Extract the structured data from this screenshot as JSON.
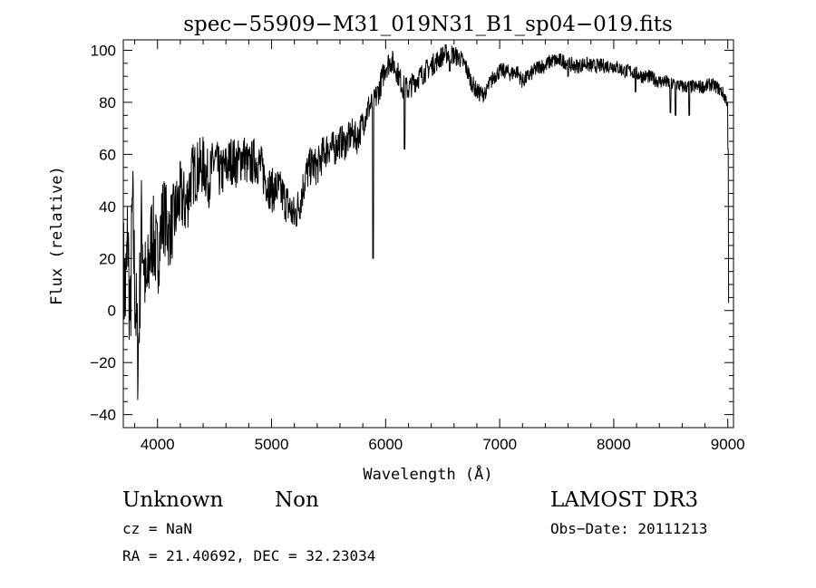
{
  "chart_data": {
    "type": "line",
    "title": "spec−55909−M31_019N31_B1_sp04−019.fits",
    "xlabel": "Wavelength (Å)",
    "ylabel": "Flux (relative)",
    "xlim": [
      3700,
      9050
    ],
    "ylim": [
      -45,
      104
    ],
    "xticks": [
      4000,
      5000,
      6000,
      7000,
      8000,
      9000
    ],
    "yticks": [
      -40,
      -20,
      0,
      20,
      40,
      60,
      80,
      100
    ],
    "ytick_labels": [
      "−40",
      "−20",
      "0",
      "20",
      "40",
      "60",
      "80",
      "100"
    ],
    "grid": false,
    "series": [
      {
        "name": "flux",
        "anchors": [
          [
            3700,
            15
          ],
          [
            3720,
            5
          ],
          [
            3740,
            30
          ],
          [
            3760,
            -8
          ],
          [
            3780,
            42
          ],
          [
            3800,
            10
          ],
          [
            3830,
            -20
          ],
          [
            3860,
            35
          ],
          [
            3900,
            5
          ],
          [
            3950,
            30
          ],
          [
            4000,
            20
          ],
          [
            4050,
            38
          ],
          [
            4100,
            30
          ],
          [
            4150,
            36
          ],
          [
            4200,
            44
          ],
          [
            4250,
            40
          ],
          [
            4300,
            52
          ],
          [
            4350,
            54
          ],
          [
            4400,
            56
          ],
          [
            4450,
            50
          ],
          [
            4500,
            58
          ],
          [
            4550,
            52
          ],
          [
            4600,
            55
          ],
          [
            4650,
            58
          ],
          [
            4700,
            56
          ],
          [
            4750,
            60
          ],
          [
            4800,
            55
          ],
          [
            4850,
            58
          ],
          [
            4900,
            56
          ],
          [
            4950,
            50
          ],
          [
            5000,
            46
          ],
          [
            5050,
            47
          ],
          [
            5100,
            44
          ],
          [
            5150,
            40
          ],
          [
            5200,
            36
          ],
          [
            5250,
            42
          ],
          [
            5300,
            52
          ],
          [
            5350,
            56
          ],
          [
            5400,
            55
          ],
          [
            5450,
            60
          ],
          [
            5500,
            63
          ],
          [
            5550,
            62
          ],
          [
            5600,
            65
          ],
          [
            5650,
            64
          ],
          [
            5700,
            68
          ],
          [
            5750,
            66
          ],
          [
            5800,
            72
          ],
          [
            5850,
            78
          ],
          [
            5900,
            80
          ],
          [
            5950,
            86
          ],
          [
            6000,
            94
          ],
          [
            6050,
            96
          ],
          [
            6100,
            92
          ],
          [
            6150,
            86
          ],
          [
            6200,
            85
          ],
          [
            6250,
            88
          ],
          [
            6300,
            90
          ],
          [
            6350,
            92
          ],
          [
            6400,
            94
          ],
          [
            6450,
            96
          ],
          [
            6500,
            98
          ],
          [
            6550,
            99
          ],
          [
            6600,
            98
          ],
          [
            6650,
            97
          ],
          [
            6700,
            94
          ],
          [
            6750,
            88
          ],
          [
            6800,
            84
          ],
          [
            6850,
            83
          ],
          [
            6900,
            86
          ],
          [
            6950,
            90
          ],
          [
            7000,
            92
          ],
          [
            7050,
            92
          ],
          [
            7100,
            91
          ],
          [
            7150,
            92
          ],
          [
            7200,
            88
          ],
          [
            7250,
            90
          ],
          [
            7300,
            92
          ],
          [
            7350,
            94
          ],
          [
            7400,
            94
          ],
          [
            7450,
            96
          ],
          [
            7500,
            96
          ],
          [
            7550,
            96
          ],
          [
            7600,
            95
          ],
          [
            7650,
            94
          ],
          [
            7700,
            94
          ],
          [
            7750,
            95
          ],
          [
            7800,
            94
          ],
          [
            7850,
            94
          ],
          [
            7900,
            94
          ],
          [
            7950,
            94
          ],
          [
            8000,
            94
          ],
          [
            8050,
            93
          ],
          [
            8100,
            92
          ],
          [
            8150,
            92
          ],
          [
            8200,
            91
          ],
          [
            8250,
            90
          ],
          [
            8300,
            90
          ],
          [
            8350,
            89
          ],
          [
            8400,
            88
          ],
          [
            8450,
            88
          ],
          [
            8500,
            87
          ],
          [
            8550,
            87
          ],
          [
            8600,
            86
          ],
          [
            8650,
            86
          ],
          [
            8700,
            86
          ],
          [
            8750,
            86
          ],
          [
            8800,
            86
          ],
          [
            8850,
            87
          ],
          [
            8900,
            86
          ],
          [
            8950,
            84
          ],
          [
            9000,
            80
          ]
        ],
        "absorption_lines": [
          [
            5890,
            20
          ],
          [
            6165,
            62
          ],
          [
            6563,
            92
          ],
          [
            6880,
            83
          ],
          [
            7600,
            90
          ],
          [
            8190,
            84
          ],
          [
            8498,
            76
          ],
          [
            8542,
            75
          ],
          [
            8662,
            75
          ],
          [
            9005,
            62
          ],
          [
            9010,
            3
          ]
        ],
        "noise_amplitude": [
          [
            3700,
            24
          ],
          [
            4000,
            16
          ],
          [
            4500,
            10
          ],
          [
            5200,
            8
          ],
          [
            6000,
            5
          ],
          [
            7000,
            3
          ],
          [
            9000,
            2.5
          ]
        ]
      }
    ]
  },
  "footer": {
    "class_label": "Unknown",
    "subclass_label": "Non",
    "survey_label": "LAMOST DR3",
    "cz_text": "cz = NaN",
    "obs_date_text": "Obs−Date: 20111213",
    "radec_text": "RA =  21.40692, DEC =  32.23034"
  }
}
